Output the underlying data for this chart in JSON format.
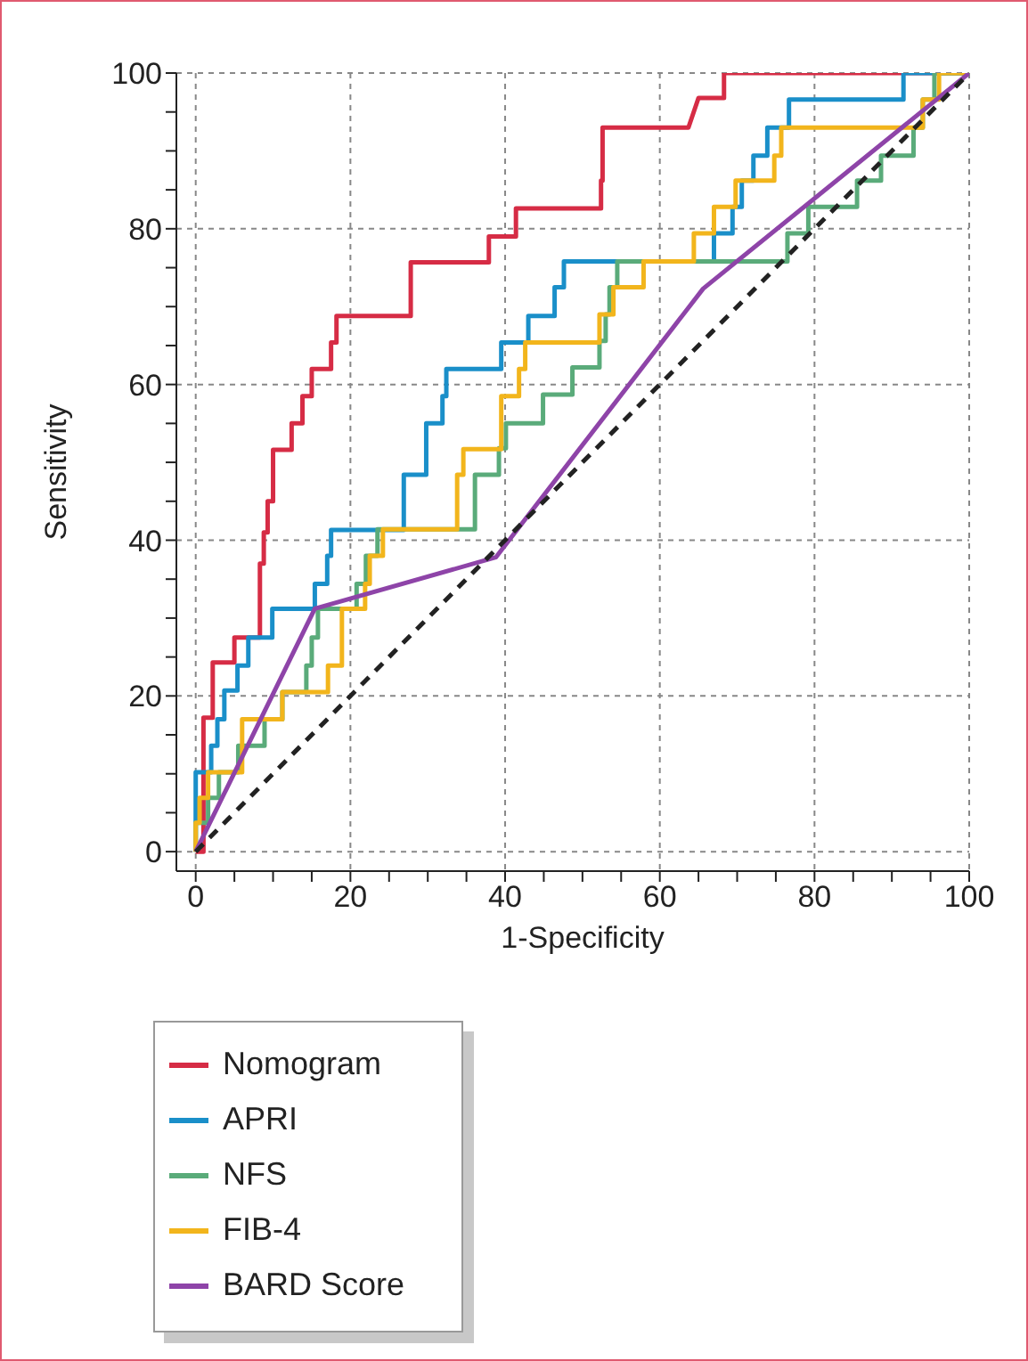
{
  "chart_data": {
    "type": "line",
    "xlabel": "1-Specificity",
    "ylabel": "Sensitivity",
    "xlim": [
      -2.5,
      100
    ],
    "ylim": [
      -2.5,
      100
    ],
    "xticks": [
      0,
      {
        "value": 5,
        "label": null
      },
      {
        "value": 10,
        "label": null
      },
      {
        "value": 15,
        "label": null
      },
      20,
      {
        "value": 25,
        "label": null
      },
      {
        "value": 30,
        "label": null
      },
      {
        "value": 35,
        "label": null
      },
      40,
      {
        "value": 45,
        "label": null
      },
      {
        "value": 50,
        "label": null
      },
      {
        "value": 55,
        "label": null
      },
      60,
      {
        "value": 65,
        "label": null
      },
      {
        "value": 70,
        "label": null
      },
      {
        "value": 75,
        "label": null
      },
      80,
      {
        "value": 85,
        "label": null
      },
      {
        "value": 90,
        "label": null
      },
      {
        "value": 95,
        "label": null
      },
      100
    ],
    "yticks": [
      0,
      {
        "value": 5,
        "label": null
      },
      {
        "value": 10,
        "label": null
      },
      {
        "value": 15,
        "label": null
      },
      20,
      {
        "value": 25,
        "label": null
      },
      {
        "value": 30,
        "label": null
      },
      {
        "value": 35,
        "label": null
      },
      40,
      {
        "value": 45,
        "label": null
      },
      {
        "value": 50,
        "label": null
      },
      {
        "value": 55,
        "label": null
      },
      60,
      {
        "value": 65,
        "label": null
      },
      {
        "value": 70,
        "label": null
      },
      {
        "value": 75,
        "label": null
      },
      80,
      {
        "value": 85,
        "label": null
      },
      {
        "value": 90,
        "label": null
      },
      {
        "value": 95,
        "label": null
      },
      100
    ],
    "grid": true,
    "legend": "bottom left",
    "series": [
      {
        "name": "Nomogram",
        "color": "#d62c45",
        "x": [
          0,
          1,
          1,
          2.2,
          2.2,
          5,
          5,
          8.3,
          8.3,
          8.8,
          8.8,
          9.3,
          9.3,
          10,
          10,
          12.4,
          12.4,
          13.8,
          13.8,
          15,
          15,
          17.5,
          17.5,
          18.2,
          18.2,
          27.8,
          27.8,
          37.9,
          37.9,
          41.4,
          41.4,
          52.4,
          52.4,
          52.6,
          52.6,
          63.7,
          65,
          68.3,
          68.3,
          100
        ],
        "values": [
          0,
          0,
          17.2,
          17.2,
          24.3,
          24.3,
          27.5,
          27.5,
          37,
          37,
          41,
          41,
          45,
          45,
          51.6,
          51.6,
          55,
          55,
          58.5,
          58.5,
          62,
          62,
          65.4,
          65.4,
          68.8,
          68.8,
          75.7,
          75.7,
          79,
          79,
          82.6,
          82.6,
          86.2,
          86.2,
          93,
          93,
          96.8,
          96.8,
          100,
          100
        ]
      },
      {
        "name": "APRI",
        "color": "#1a8fc9",
        "x": [
          0,
          0,
          2,
          2,
          2.8,
          2.8,
          3.7,
          3.7,
          5.4,
          5.4,
          6.8,
          6.8,
          9.9,
          9.9,
          15.4,
          15.4,
          17,
          17,
          17.5,
          17.5,
          26.9,
          26.9,
          29.8,
          29.8,
          31.9,
          31.9,
          32.4,
          32.4,
          39.5,
          39.5,
          43,
          43,
          46.4,
          46.4,
          47.6,
          47.6,
          67,
          67,
          69.4,
          69.4,
          70.6,
          70.6,
          72.1,
          72.1,
          73.9,
          73.9,
          76.7,
          76.7,
          91.5,
          91.5,
          100
        ],
        "values": [
          0,
          10.2,
          10.2,
          13.6,
          13.6,
          17,
          17,
          20.7,
          20.7,
          23.9,
          23.9,
          27.5,
          27.5,
          31.2,
          31.2,
          34.4,
          34.4,
          38,
          38,
          41.3,
          41.3,
          48.4,
          48.4,
          55,
          55,
          58.5,
          58.5,
          62,
          62,
          65.4,
          65.4,
          68.8,
          68.8,
          72.5,
          72.5,
          75.8,
          75.8,
          79.4,
          79.4,
          82.8,
          82.8,
          86.2,
          86.2,
          89.4,
          89.4,
          93,
          93,
          96.6,
          96.6,
          100,
          100
        ]
      },
      {
        "name": "NFS",
        "color": "#5aab7a",
        "x": [
          0,
          0,
          1.6,
          1.6,
          3,
          3,
          5.5,
          5.5,
          8.9,
          8.9,
          11.2,
          11.2,
          14.3,
          14.3,
          15,
          15,
          15.8,
          15.8,
          20.8,
          20.8,
          22,
          22,
          23.5,
          23.5,
          36.1,
          36.1,
          39.2,
          39.2,
          40.1,
          40.1,
          44.9,
          44.9,
          48.7,
          48.7,
          52.2,
          52.2,
          53,
          53,
          53.5,
          53.5,
          54.5,
          54.5,
          76.5,
          76.5,
          79.2,
          79.2,
          85.5,
          85.5,
          88.6,
          88.6,
          92.8,
          92.8,
          94,
          94,
          95.5,
          95.5,
          100
        ],
        "values": [
          0,
          3.7,
          3.7,
          6.9,
          6.9,
          10.2,
          10.2,
          13.6,
          13.6,
          17,
          17,
          20.5,
          20.5,
          23.9,
          23.9,
          27.5,
          27.5,
          31.2,
          31.2,
          34.4,
          34.4,
          38,
          38,
          41.4,
          41.4,
          48.4,
          48.4,
          51.8,
          51.8,
          55,
          55,
          58.7,
          58.7,
          62.2,
          62.2,
          65.6,
          65.6,
          69,
          69,
          72.5,
          72.5,
          75.8,
          75.8,
          79.4,
          79.4,
          82.8,
          82.8,
          86.2,
          86.2,
          89.4,
          89.4,
          93,
          93,
          96.6,
          96.6,
          100,
          100
        ]
      },
      {
        "name": "FIB-4",
        "color": "#f2b51c",
        "x": [
          0,
          0,
          0.5,
          0.5,
          1.6,
          1.6,
          6,
          6,
          11.2,
          11.2,
          17.1,
          17.1,
          18.9,
          18.9,
          21.9,
          21.9,
          22.5,
          22.5,
          24.2,
          24.2,
          33.8,
          33.8,
          34.6,
          34.6,
          39.5,
          39.5,
          41.8,
          41.8,
          42.6,
          42.6,
          52.2,
          52.2,
          54,
          54,
          57.9,
          57.9,
          64.4,
          64.4,
          67,
          67,
          69.8,
          69.8,
          74.8,
          74.8,
          75.7,
          75.7,
          94,
          94,
          96.1,
          96.1,
          100
        ],
        "values": [
          0,
          3.7,
          3.7,
          6.9,
          6.9,
          10.2,
          10.2,
          17,
          17,
          20.5,
          20.5,
          23.9,
          23.9,
          31.2,
          31.2,
          34.4,
          34.4,
          38,
          38,
          41.4,
          41.4,
          48.4,
          48.4,
          51.7,
          51.7,
          58.5,
          58.5,
          62,
          62,
          65.4,
          65.4,
          69,
          69,
          72.5,
          72.5,
          75.8,
          75.8,
          79.4,
          79.4,
          82.8,
          82.8,
          86.2,
          86.2,
          89.4,
          89.4,
          93,
          93,
          96.6,
          96.6,
          100,
          100
        ]
      },
      {
        "name": "BARD Score",
        "color": "#8e44a8",
        "x": [
          0,
          15.4,
          38.8,
          65.6,
          100
        ],
        "values": [
          0,
          31.2,
          37.8,
          72.3,
          100
        ]
      },
      {
        "type": "line",
        "color": "#222222",
        "line_style": "dashed",
        "x": [
          0,
          100
        ],
        "values": [
          0,
          100
        ]
      }
    ]
  }
}
